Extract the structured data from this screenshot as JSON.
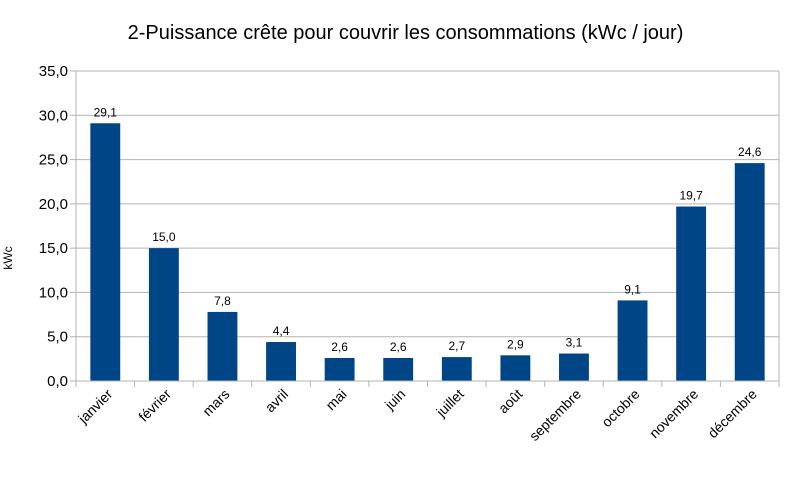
{
  "chart_data": {
    "type": "bar",
    "title": "2-Puissance crête pour couvrir les consommations (kWc / jour)",
    "ylabel": "kWc",
    "xlabel": "",
    "categories": [
      "janvier",
      "février",
      "mars",
      "avril",
      "mai",
      "juin",
      "juillet",
      "août",
      "septembre",
      "octobre",
      "novembre",
      "décembre"
    ],
    "values": [
      29.1,
      15.0,
      7.8,
      4.4,
      2.6,
      2.6,
      2.7,
      2.9,
      3.1,
      9.1,
      19.7,
      24.6
    ],
    "data_labels": [
      "29,1",
      "15,0",
      "7,8",
      "4,4",
      "2,6",
      "2,6",
      "2,7",
      "2,9",
      "3,1",
      "9,1",
      "19,7",
      "24,6"
    ],
    "ylim": [
      0,
      35
    ],
    "yticks": [
      0,
      5,
      10,
      15,
      20,
      25,
      30,
      35
    ],
    "ytick_labels": [
      "0,0",
      "5,0",
      "10,0",
      "15,0",
      "20,0",
      "25,0",
      "30,0",
      "35,0"
    ],
    "grid": true,
    "legend": "none",
    "colors": {
      "bar": "#004586",
      "grid": "#b3b3b3"
    }
  }
}
